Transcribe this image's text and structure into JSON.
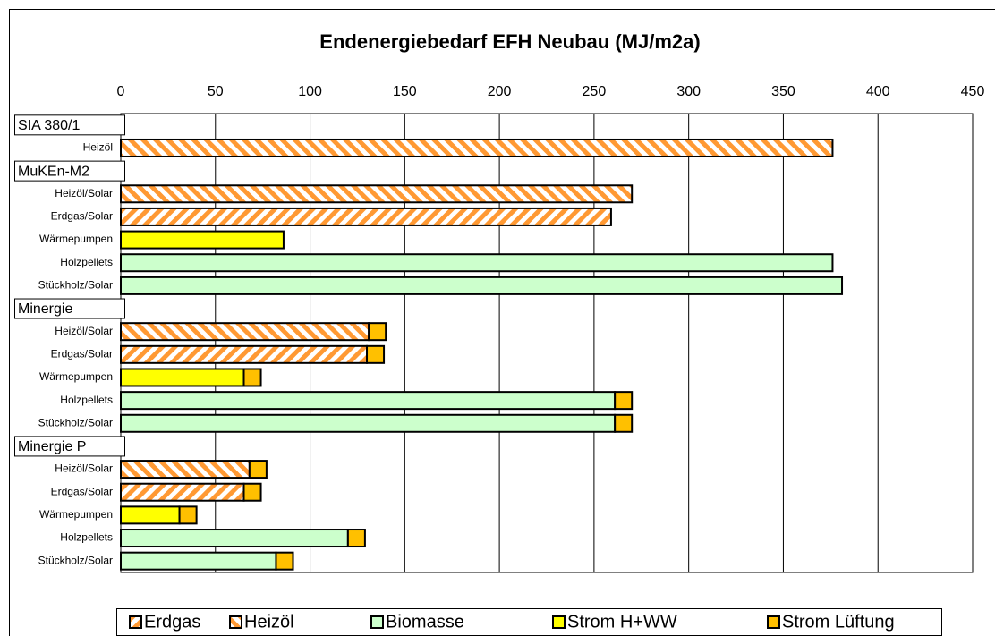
{
  "chart_data": {
    "type": "stacked-bar-horizontal",
    "title": "Endenergiebedarf EFH Neubau (MJ/m2a)",
    "categories": [
      "SIA 380/1",
      "Heizöl",
      "MuKEn-M2",
      "Heizöl/Solar",
      "Erdgas/Solar",
      "Wärmepumpen",
      "Holzpellets",
      "Stückholz/Solar",
      "Minergie",
      "Heizöl/Solar",
      "Erdgas/Solar",
      "Wärmepumpen",
      "Holzpellets",
      "Stückholz/Solar",
      "Minergie P",
      "Heizöl/Solar",
      "Erdgas/Solar",
      "Wärmepumpen",
      "Holzpellets",
      "Stückholz/Solar"
    ],
    "series": [
      {
        "name": "Erdgas",
        "color": "#ff9933",
        "pattern": "diagonal-up",
        "values": [
          null,
          null,
          null,
          null,
          259,
          null,
          null,
          null,
          null,
          null,
          130,
          null,
          null,
          null,
          null,
          null,
          65,
          null,
          null,
          null
        ]
      },
      {
        "name": "Heizöl",
        "color": "#ff9933",
        "pattern": "diagonal-down",
        "values": [
          null,
          376,
          null,
          270,
          null,
          null,
          null,
          null,
          null,
          131,
          null,
          null,
          null,
          null,
          null,
          68,
          null,
          null,
          null,
          null
        ]
      },
      {
        "name": "Biomasse",
        "color": "#ccffcc",
        "values": [
          null,
          null,
          null,
          null,
          null,
          null,
          376,
          381,
          null,
          null,
          null,
          null,
          261,
          261,
          null,
          null,
          null,
          null,
          120,
          82
        ]
      },
      {
        "name": "Strom H+WW",
        "color": "#ffff00",
        "values": [
          null,
          null,
          null,
          null,
          null,
          86,
          null,
          null,
          null,
          null,
          null,
          65,
          null,
          null,
          null,
          null,
          null,
          31,
          null,
          null
        ]
      },
      {
        "name": "Strom Lüftung",
        "color": "#ffc000",
        "values": [
          null,
          null,
          null,
          null,
          null,
          null,
          null,
          null,
          null,
          9,
          9,
          9,
          9,
          9,
          null,
          9,
          9,
          9,
          9,
          9
        ]
      }
    ],
    "xlim": [
      0,
      450
    ],
    "xticks": [
      0,
      50,
      100,
      150,
      200,
      250,
      300,
      350,
      400,
      450
    ],
    "xaxis_position": "top",
    "grid": true,
    "legend": "bottom"
  }
}
